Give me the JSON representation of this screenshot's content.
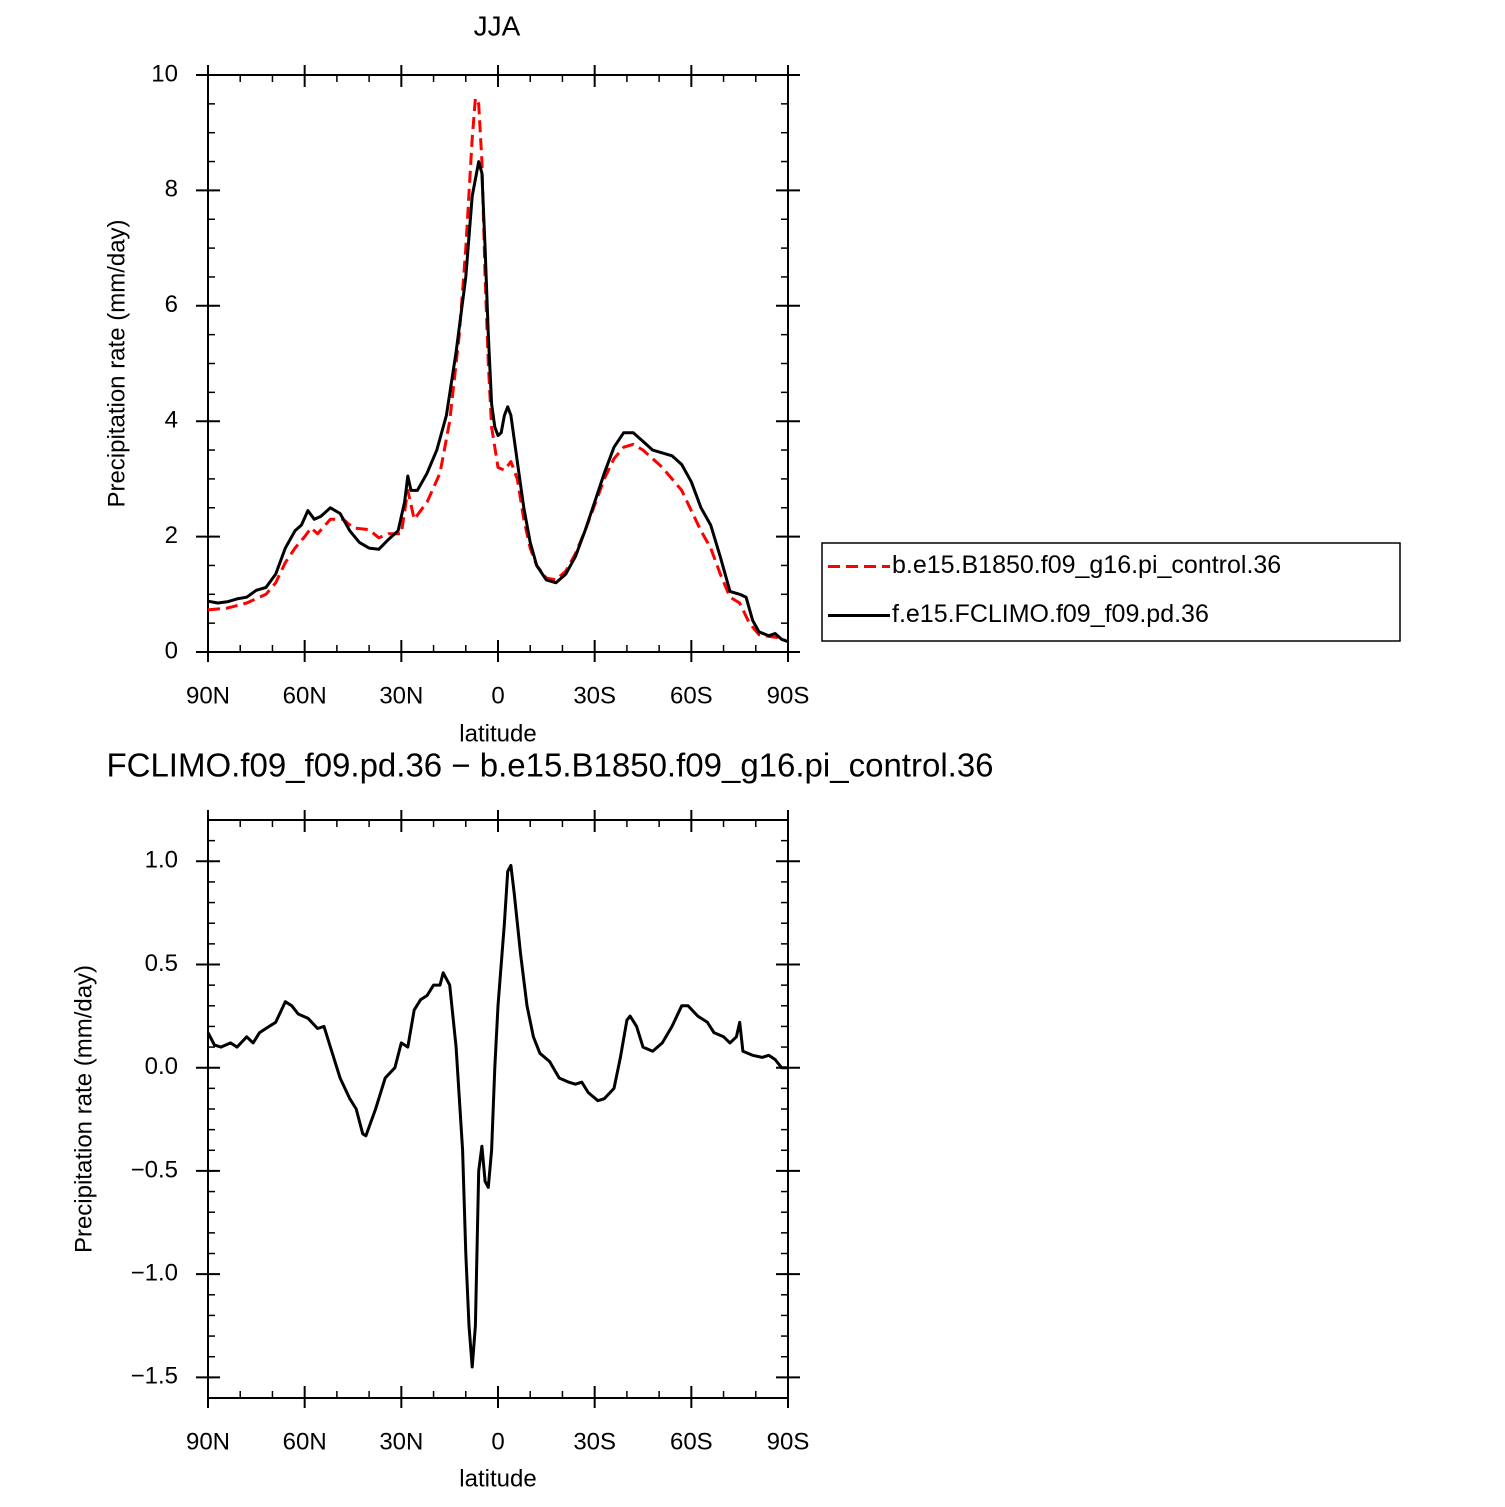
{
  "chart_data": [
    {
      "type": "line",
      "title": "JJA",
      "xlabel": "latitude",
      "ylabel": "Precipitation rate (mm/day)",
      "xlim": [
        90,
        -90
      ],
      "xticks": [
        {
          "value": 90,
          "label": "90N"
        },
        {
          "value": 60,
          "label": "60N"
        },
        {
          "value": 30,
          "label": "30N"
        },
        0,
        {
          "value": -30,
          "label": "30S"
        },
        {
          "value": -60,
          "label": "60S"
        },
        {
          "value": -90,
          "label": "90S"
        }
      ],
      "ylim": [
        0,
        10
      ],
      "yticks": [
        0,
        2,
        4,
        6,
        8,
        10
      ],
      "grid": false,
      "legend": "right",
      "series": [
        {
          "name": "b.e15.B1850.f09_g16.pi_control.36",
          "color": "#ff0000",
          "linestyle": "dashed",
          "x": [
            90,
            84,
            78,
            72,
            69,
            66,
            63,
            60,
            58,
            56,
            52,
            48,
            45,
            40,
            37,
            34,
            30,
            28,
            26,
            22,
            18,
            15,
            12,
            10,
            8,
            7,
            6,
            5,
            4,
            3,
            2,
            0,
            -2,
            -4,
            -6,
            -8,
            -10,
            -12,
            -15,
            -18,
            -21,
            -24,
            -27,
            -30,
            -33,
            -36,
            -39,
            -42,
            -45,
            -48,
            -51,
            -54,
            -57,
            -60,
            -63,
            -66,
            -69,
            -72,
            -75,
            -78,
            -81,
            -84,
            -87,
            -90
          ],
          "values": [
            0.73,
            0.76,
            0.85,
            1.0,
            1.2,
            1.55,
            1.8,
            2.0,
            2.15,
            2.05,
            2.3,
            2.3,
            2.15,
            2.12,
            1.98,
            2.05,
            2.05,
            2.8,
            2.3,
            2.6,
            3.1,
            4.0,
            5.5,
            7.0,
            8.9,
            9.6,
            9.5,
            8.5,
            6.5,
            5.0,
            3.9,
            3.2,
            3.15,
            3.3,
            3.0,
            2.3,
            1.8,
            1.5,
            1.28,
            1.25,
            1.4,
            1.7,
            2.1,
            2.55,
            3.0,
            3.35,
            3.55,
            3.6,
            3.5,
            3.35,
            3.2,
            3.0,
            2.8,
            2.45,
            2.1,
            1.8,
            1.35,
            0.95,
            0.85,
            0.5,
            0.3,
            0.27,
            0.25,
            0.18
          ]
        },
        {
          "name": "f.e15.FCLIMO.f09_f09.pd.36",
          "color": "#000000",
          "linestyle": "solid",
          "x": [
            90,
            87,
            84,
            81,
            78,
            75,
            72,
            69,
            66,
            63,
            61,
            59,
            57,
            55,
            52,
            49,
            46,
            43,
            40,
            37,
            34,
            31,
            29,
            28,
            27,
            25,
            22,
            19,
            16,
            13,
            10,
            8,
            6,
            5,
            4,
            3,
            2,
            1,
            0,
            -1,
            -2,
            -3,
            -4,
            -6,
            -8,
            -10,
            -12,
            -15,
            -18,
            -21,
            -24,
            -27,
            -30,
            -33,
            -36,
            -39,
            -42,
            -45,
            -48,
            -51,
            -54,
            -57,
            -60,
            -63,
            -66,
            -69,
            -72,
            -75,
            -77,
            -79,
            -81,
            -84,
            -86,
            -88,
            -90
          ],
          "values": [
            0.88,
            0.85,
            0.87,
            0.92,
            0.95,
            1.07,
            1.12,
            1.35,
            1.8,
            2.1,
            2.2,
            2.45,
            2.3,
            2.35,
            2.5,
            2.4,
            2.1,
            1.9,
            1.8,
            1.78,
            1.95,
            2.1,
            2.6,
            3.05,
            2.8,
            2.8,
            3.1,
            3.5,
            4.1,
            5.2,
            6.5,
            7.9,
            8.5,
            8.3,
            7.0,
            5.5,
            4.3,
            3.9,
            3.75,
            3.8,
            4.1,
            4.25,
            4.1,
            3.3,
            2.5,
            1.9,
            1.5,
            1.25,
            1.2,
            1.35,
            1.65,
            2.1,
            2.6,
            3.1,
            3.55,
            3.8,
            3.8,
            3.65,
            3.5,
            3.45,
            3.4,
            3.25,
            2.95,
            2.5,
            2.2,
            1.65,
            1.05,
            1.0,
            0.95,
            0.55,
            0.35,
            0.28,
            0.32,
            0.22,
            0.18
          ]
        }
      ]
    },
    {
      "type": "line",
      "title": "FCLIMO.f09_f09.pd.36 − b.e15.B1850.f09_g16.pi_control.36",
      "xlabel": "latitude",
      "ylabel": "Precipitation rate (mm/day)",
      "xlim": [
        90,
        -90
      ],
      "xticks": [
        {
          "value": 90,
          "label": "90N"
        },
        {
          "value": 60,
          "label": "60N"
        },
        {
          "value": 30,
          "label": "30N"
        },
        0,
        {
          "value": -30,
          "label": "30S"
        },
        {
          "value": -60,
          "label": "60S"
        },
        {
          "value": -90,
          "label": "90S"
        }
      ],
      "ylim": [
        -1.6,
        1.2
      ],
      "yticks": [
        {
          "value": -1.5,
          "label": "−1.5"
        },
        {
          "value": -1,
          "label": "−1.0"
        },
        {
          "value": -0.5,
          "label": "−0.5"
        },
        {
          "value": 0,
          "label": "0.0"
        },
        0.5,
        {
          "value": 1,
          "label": "1.0"
        }
      ],
      "grid": false,
      "series": [
        {
          "color": "#000000",
          "linestyle": "solid",
          "x": [
            90,
            88,
            86,
            83,
            81,
            78,
            76,
            74,
            71,
            69,
            66,
            64,
            62,
            59,
            56,
            54,
            52,
            49,
            46,
            44,
            42,
            41,
            38,
            35,
            32,
            30,
            28,
            26,
            24,
            22,
            20,
            18,
            17,
            15,
            13,
            11,
            10,
            9,
            8,
            7,
            6,
            5,
            4,
            3,
            2,
            1,
            0,
            -2,
            -3,
            -4,
            -5,
            -7,
            -9,
            -11,
            -13,
            -16,
            -19,
            -22,
            -24,
            -26,
            -28,
            -31,
            -33,
            -36,
            -38,
            -40,
            -41,
            -43,
            -45,
            -48,
            -51,
            -54,
            -57,
            -59,
            -62,
            -65,
            -67,
            -70,
            -72,
            -74,
            -75,
            -76,
            -79,
            -82,
            -84,
            -86,
            -88,
            -90
          ],
          "values": [
            0.17,
            0.11,
            0.1,
            0.12,
            0.1,
            0.15,
            0.12,
            0.17,
            0.2,
            0.22,
            0.32,
            0.3,
            0.26,
            0.24,
            0.19,
            0.2,
            0.1,
            -0.05,
            -0.15,
            -0.2,
            -0.32,
            -0.33,
            -0.2,
            -0.05,
            0.0,
            0.12,
            0.1,
            0.28,
            0.33,
            0.35,
            0.4,
            0.4,
            0.46,
            0.4,
            0.1,
            -0.4,
            -0.9,
            -1.25,
            -1.45,
            -1.25,
            -0.5,
            -0.38,
            -0.55,
            -0.58,
            -0.4,
            0.0,
            0.3,
            0.7,
            0.95,
            0.98,
            0.85,
            0.55,
            0.3,
            0.15,
            0.07,
            0.03,
            -0.05,
            -0.07,
            -0.08,
            -0.07,
            -0.12,
            -0.16,
            -0.15,
            -0.1,
            0.05,
            0.23,
            0.25,
            0.2,
            0.1,
            0.08,
            0.12,
            0.2,
            0.3,
            0.3,
            0.25,
            0.22,
            0.17,
            0.15,
            0.12,
            0.15,
            0.22,
            0.08,
            0.06,
            0.05,
            0.06,
            0.04,
            0.0,
            0.0
          ]
        }
      ]
    }
  ]
}
